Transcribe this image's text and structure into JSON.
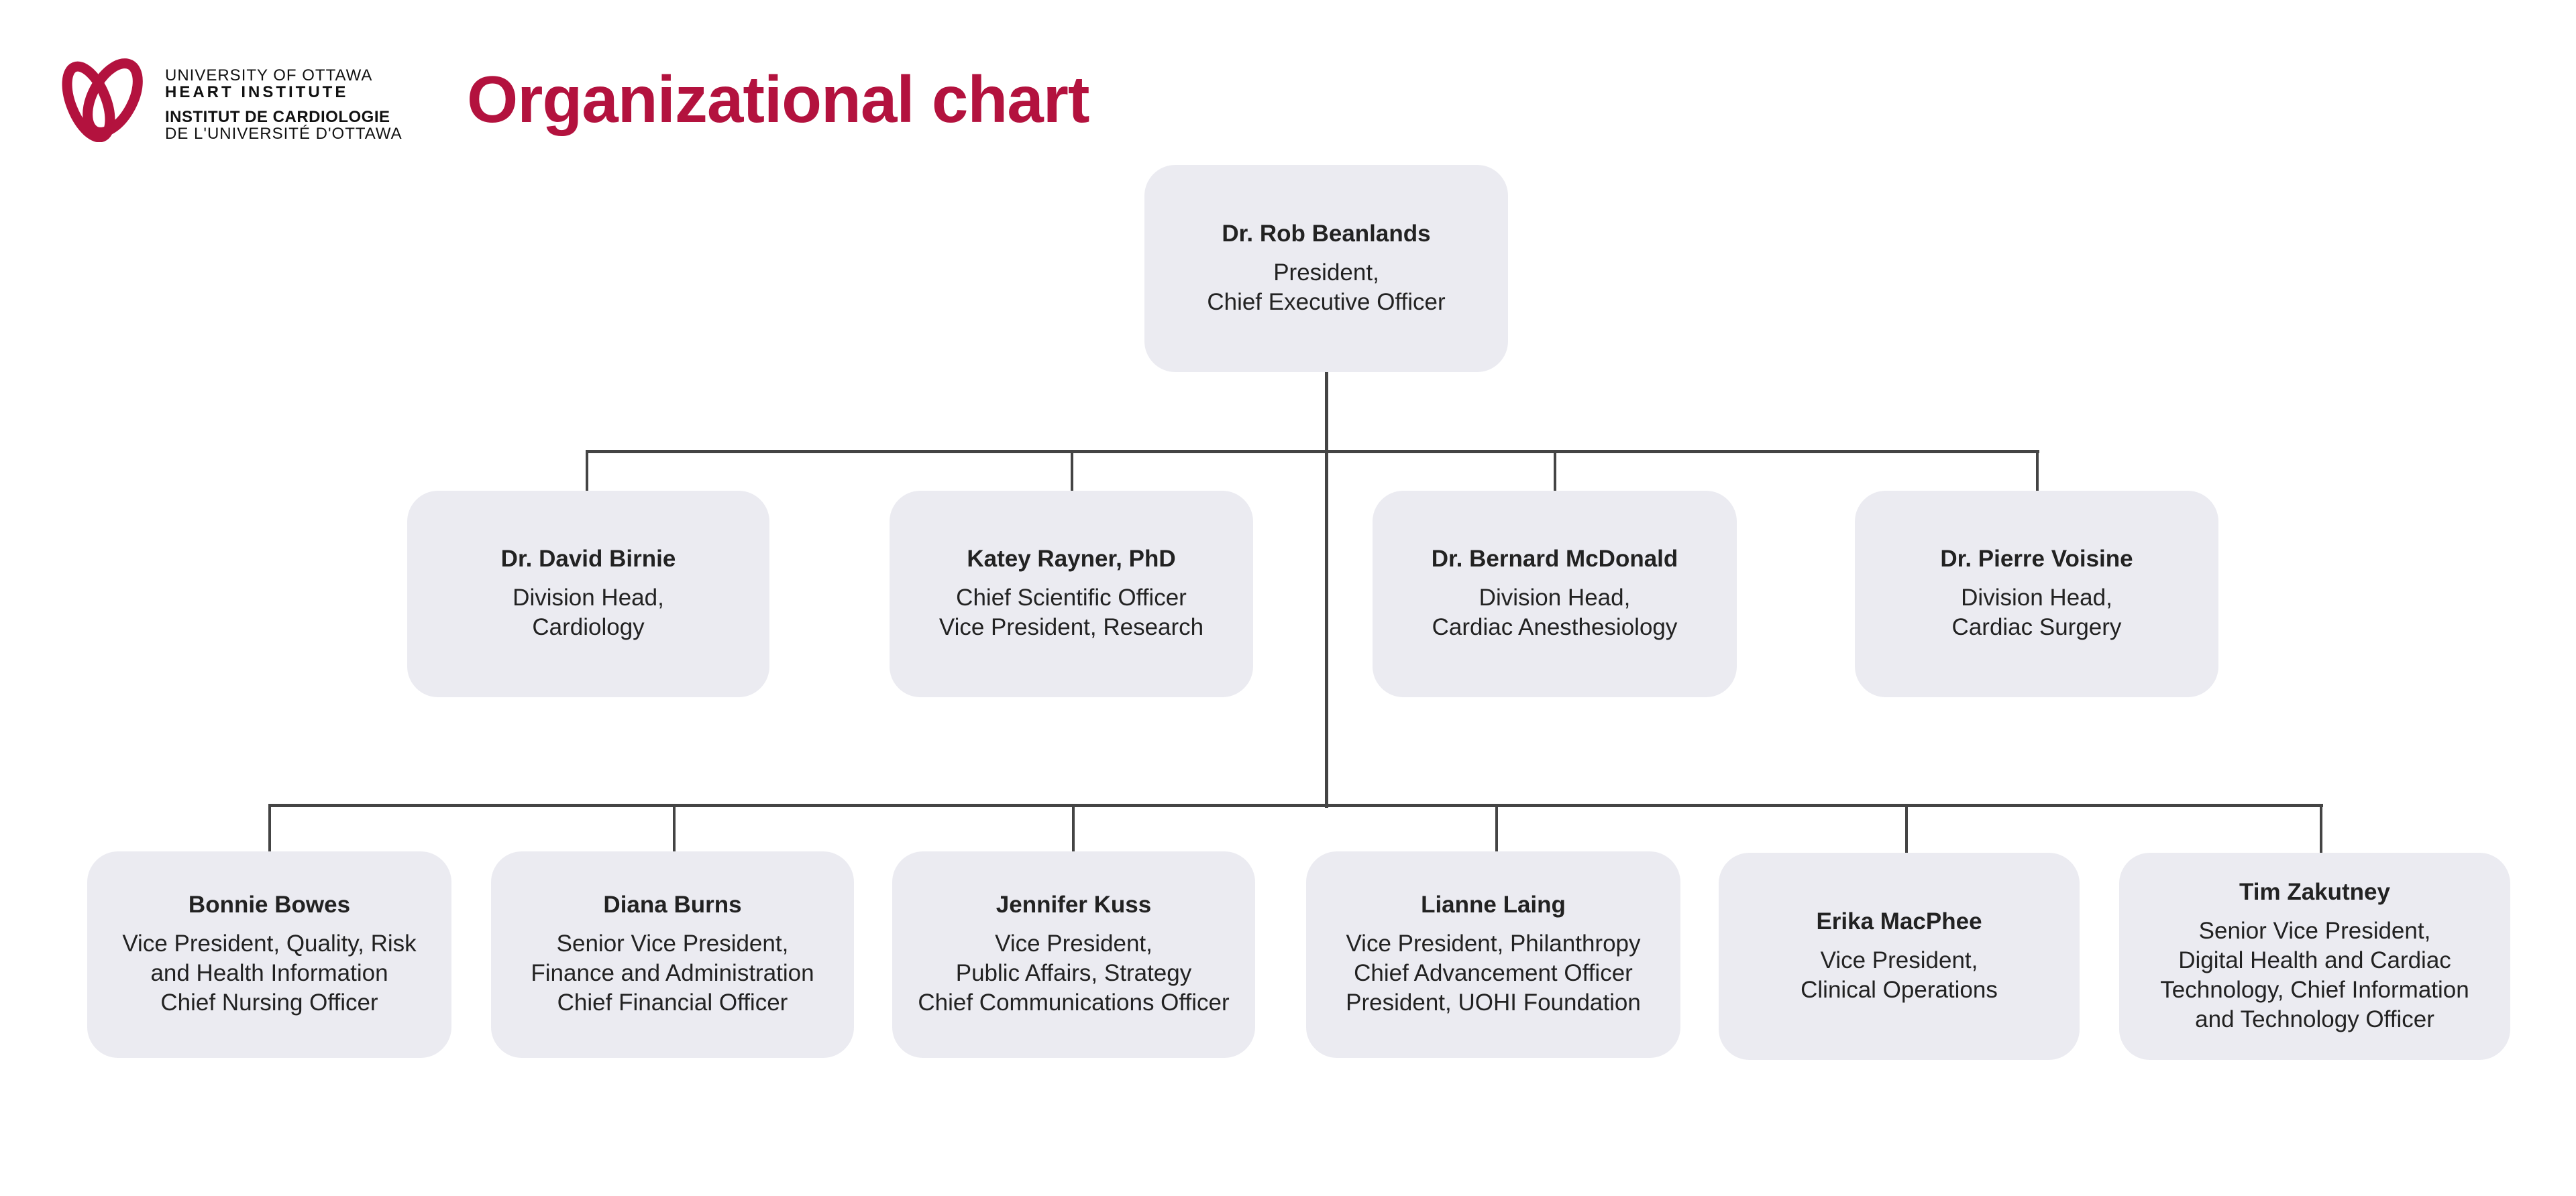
{
  "logo": {
    "lines": [
      "UNIVERSITY OF OTTAWA",
      "HEART INSTITUTE",
      "INSTITUT DE CARDIOLOGIE",
      "DE L'UNIVERSITÉ D'OTTAWA"
    ],
    "color": "#b3123e"
  },
  "title": "Organizational chart",
  "colors": {
    "title": "#b3123e",
    "box": "#ebebf1",
    "connector": "#444444"
  },
  "top": {
    "name": "Dr. Rob Beanlands",
    "role": "President,\nChief Executive Officer"
  },
  "row2": [
    {
      "name": "Dr. David Birnie",
      "role": "Division Head,\nCardiology"
    },
    {
      "name": "Katey Rayner, PhD",
      "role": "Chief Scientific Officer\nVice President, Research"
    },
    {
      "name": "Dr. Bernard McDonald",
      "role": "Division Head,\nCardiac Anesthesiology"
    },
    {
      "name": "Dr. Pierre Voisine",
      "role": "Division Head,\nCardiac Surgery"
    }
  ],
  "row3": [
    {
      "name": "Bonnie Bowes",
      "role": "Vice President, Quality, Risk\nand Health Information\nChief Nursing Officer"
    },
    {
      "name": "Diana Burns",
      "role": "Senior Vice President,\nFinance and Administration\nChief Financial Officer"
    },
    {
      "name": "Jennifer Kuss",
      "role": "Vice President,\nPublic Affairs, Strategy\nChief Communications Officer"
    },
    {
      "name": "Lianne Laing",
      "role": "Vice President, Philanthropy\nChief Advancement Officer\nPresident, UOHI Foundation"
    },
    {
      "name": "Erika MacPhee",
      "role": "Vice President,\nClinical Operations"
    },
    {
      "name": "Tim Zakutney",
      "role": "Senior Vice President,\nDigital Health and Cardiac\nTechnology, Chief Information\nand Technology Officer"
    }
  ]
}
